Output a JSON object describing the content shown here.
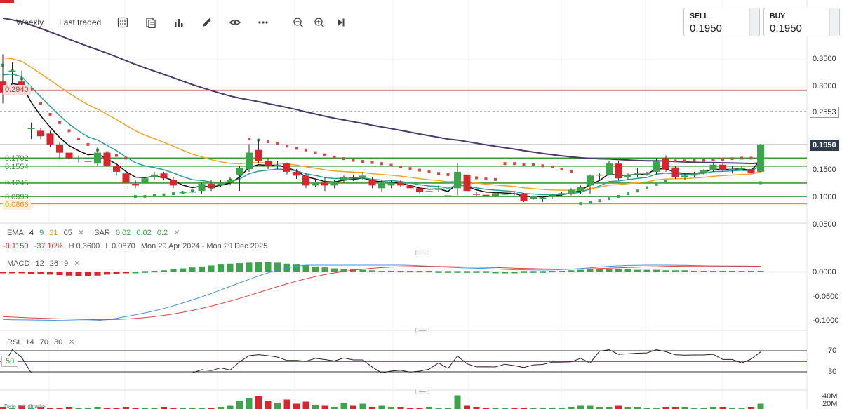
{
  "toolbar": {
    "interval": "Weekly",
    "price_type": "Last traded",
    "icons": [
      "grid-icon",
      "compare-icon",
      "bar-chart-icon",
      "pencil-icon",
      "eye-icon",
      "more-icon",
      "zoom-out-icon",
      "zoom-in-icon",
      "skip-forward-icon"
    ]
  },
  "sell": {
    "label": "SELL",
    "value": "0.1950"
  },
  "buy": {
    "label": "BUY",
    "value": "0.1950"
  },
  "indicators": {
    "ema": {
      "name": "EMA",
      "p1": "4",
      "p2": "9",
      "p3": "21",
      "p4": "65",
      "colors": [
        "#111111",
        "#2a9d9d",
        "#f0a52a",
        "#4a3a6a"
      ]
    },
    "sar": {
      "name": "SAR",
      "p1": "0.02",
      "p2": "0.02",
      "p3": "0.2",
      "colors": [
        "#e04545",
        "#3aa54a"
      ]
    },
    "macd": {
      "name": "MACD",
      "p1": "12",
      "p2": "26",
      "p3": "9"
    },
    "rsi": {
      "name": "RSI",
      "p1": "14",
      "p2": "70",
      "p3": "30"
    }
  },
  "summary": {
    "change": "-0.1150",
    "change_pct": "-37.10%",
    "high": "H 0.3600",
    "low": "L 0.0870",
    "range": "Mon 29 Apr 2024 - Mon 29 Dec 2025"
  },
  "price_axis": {
    "labels": [
      "0.3500",
      "0.3000",
      "0.2553",
      "0.2000",
      "0.1500",
      "0.1000",
      "0.0500"
    ],
    "current": "0.1950",
    "left_tags": [
      {
        "text": "0.2940",
        "color": "#c0392b"
      },
      {
        "text": "0.1702",
        "color": "#3a9a3a"
      },
      {
        "text": "0.1554",
        "color": "#3a9a3a"
      },
      {
        "text": "0.1245",
        "color": "#3a9a3a"
      },
      {
        "text": "0.0999",
        "color": "#3a9a3a"
      },
      {
        "text": "0.0866",
        "color": "#e59a1c"
      }
    ]
  },
  "macd_axis": {
    "labels": [
      "0.0000",
      "-0.0500",
      "-0.1000"
    ]
  },
  "rsi_axis": {
    "labels": [
      "70",
      "30"
    ],
    "mid": "50"
  },
  "volume_axis": {
    "labels": [
      "40M",
      "20M"
    ]
  },
  "disclaimer": "Data is indicative",
  "colors": {
    "up": "#3aa54a",
    "down": "#d9262e",
    "macd_line": "#4a90d9",
    "macd_signal": "#d94545",
    "level_red": "#c0392b",
    "level_green": "#3a9a3a",
    "level_orange": "#e59a1c"
  },
  "chart_data": {
    "type": "candlestick",
    "interval": "weekly",
    "ohlc": [
      [
        0.31,
        0.36,
        0.27,
        0.29
      ],
      [
        0.33,
        0.345,
        0.305,
        0.33
      ],
      [
        0.31,
        0.33,
        0.285,
        0.3
      ],
      [
        0.225,
        0.235,
        0.205,
        0.225
      ],
      [
        0.22,
        0.225,
        0.205,
        0.21
      ],
      [
        0.215,
        0.22,
        0.19,
        0.195
      ],
      [
        0.195,
        0.2,
        0.17,
        0.18
      ],
      [
        0.18,
        0.182,
        0.165,
        0.17
      ],
      [
        0.17,
        0.175,
        0.162,
        0.17
      ],
      [
        0.165,
        0.168,
        0.16,
        0.165
      ],
      [
        0.16,
        0.19,
        0.155,
        0.18
      ],
      [
        0.18,
        0.188,
        0.15,
        0.155
      ],
      [
        0.155,
        0.16,
        0.138,
        0.145
      ],
      [
        0.142,
        0.145,
        0.118,
        0.125
      ],
      [
        0.123,
        0.13,
        0.115,
        0.12
      ],
      [
        0.125,
        0.135,
        0.12,
        0.133
      ],
      [
        0.135,
        0.145,
        0.13,
        0.14
      ],
      [
        0.142,
        0.145,
        0.13,
        0.133
      ],
      [
        0.13,
        0.135,
        0.115,
        0.12
      ],
      [
        0.108,
        0.11,
        0.106,
        0.108
      ],
      [
        0.108,
        0.11,
        0.107,
        0.109
      ],
      [
        0.11,
        0.125,
        0.105,
        0.123
      ],
      [
        0.123,
        0.13,
        0.11,
        0.115
      ],
      [
        0.12,
        0.13,
        0.118,
        0.125
      ],
      [
        0.125,
        0.135,
        0.12,
        0.13
      ],
      [
        0.14,
        0.155,
        0.11,
        0.152
      ],
      [
        0.15,
        0.195,
        0.145,
        0.18
      ],
      [
        0.185,
        0.205,
        0.16,
        0.165
      ],
      [
        0.165,
        0.17,
        0.15,
        0.155
      ],
      [
        0.155,
        0.165,
        0.15,
        0.158
      ],
      [
        0.16,
        0.162,
        0.14,
        0.145
      ],
      [
        0.145,
        0.15,
        0.132,
        0.138
      ],
      [
        0.138,
        0.142,
        0.115,
        0.12
      ],
      [
        0.12,
        0.13,
        0.118,
        0.126
      ],
      [
        0.125,
        0.135,
        0.11,
        0.12
      ],
      [
        0.12,
        0.13,
        0.115,
        0.125
      ],
      [
        0.13,
        0.138,
        0.125,
        0.135
      ],
      [
        0.135,
        0.14,
        0.128,
        0.133
      ],
      [
        0.135,
        0.145,
        0.13,
        0.138
      ],
      [
        0.13,
        0.135,
        0.115,
        0.12
      ],
      [
        0.115,
        0.13,
        0.108,
        0.125
      ],
      [
        0.12,
        0.13,
        0.115,
        0.125
      ],
      [
        0.125,
        0.13,
        0.118,
        0.12
      ],
      [
        0.12,
        0.125,
        0.11,
        0.115
      ],
      [
        0.115,
        0.118,
        0.106,
        0.108
      ],
      [
        0.108,
        0.115,
        0.105,
        0.11
      ],
      [
        0.112,
        0.12,
        0.108,
        0.115
      ],
      [
        0.1,
        0.105,
        0.098,
        0.102
      ],
      [
        0.115,
        0.16,
        0.102,
        0.145
      ],
      [
        0.14,
        0.142,
        0.105,
        0.11
      ],
      [
        0.105,
        0.108,
        0.1,
        0.103
      ],
      [
        0.103,
        0.105,
        0.101,
        0.102
      ],
      [
        0.1,
        0.108,
        0.099,
        0.106
      ],
      [
        0.105,
        0.107,
        0.103,
        0.105
      ],
      [
        0.106,
        0.108,
        0.102,
        0.104
      ],
      [
        0.104,
        0.106,
        0.09,
        0.092
      ],
      [
        0.096,
        0.102,
        0.094,
        0.1
      ],
      [
        0.095,
        0.101,
        0.09,
        0.098
      ],
      [
        0.099,
        0.105,
        0.095,
        0.103
      ],
      [
        0.103,
        0.108,
        0.1,
        0.106
      ],
      [
        0.105,
        0.115,
        0.102,
        0.112
      ],
      [
        0.11,
        0.12,
        0.105,
        0.117
      ],
      [
        0.12,
        0.14,
        0.105,
        0.138
      ],
      [
        0.138,
        0.142,
        0.13,
        0.14
      ],
      [
        0.14,
        0.165,
        0.138,
        0.16
      ],
      [
        0.16,
        0.165,
        0.13,
        0.133
      ],
      [
        0.135,
        0.142,
        0.13,
        0.14
      ],
      [
        0.14,
        0.152,
        0.135,
        0.142
      ],
      [
        0.14,
        0.145,
        0.138,
        0.142
      ],
      [
        0.145,
        0.17,
        0.14,
        0.165
      ],
      [
        0.17,
        0.175,
        0.145,
        0.15
      ],
      [
        0.153,
        0.155,
        0.132,
        0.135
      ],
      [
        0.135,
        0.142,
        0.13,
        0.138
      ],
      [
        0.138,
        0.145,
        0.135,
        0.142
      ],
      [
        0.142,
        0.15,
        0.14,
        0.148
      ],
      [
        0.148,
        0.16,
        0.145,
        0.158
      ],
      [
        0.158,
        0.162,
        0.145,
        0.148
      ],
      [
        0.148,
        0.155,
        0.142,
        0.15
      ],
      [
        0.15,
        0.155,
        0.148,
        0.152
      ],
      [
        0.15,
        0.152,
        0.135,
        0.142
      ],
      [
        0.145,
        0.196,
        0.144,
        0.195
      ]
    ],
    "sar": [
      0.34,
      0.33,
      0.315,
      0.295,
      0.27,
      0.25,
      0.235,
      0.22,
      0.205,
      0.195,
      0.185,
      0.18,
      0.175,
      0.17,
      0.1,
      0.1,
      0.102,
      0.103,
      0.105,
      0.107,
      0.11,
      0.113,
      0.116,
      0.122,
      0.13,
      0.14,
      0.205,
      0.203,
      0.2,
      0.197,
      0.192,
      0.188,
      0.185,
      0.18,
      0.176,
      0.172,
      0.169,
      0.166,
      0.164,
      0.162,
      0.16,
      0.157,
      0.154,
      0.151,
      0.148,
      0.145,
      0.142,
      0.14,
      0.138,
      0.136,
      0.134,
      0.132,
      0.131,
      0.16,
      0.16,
      0.159,
      0.158,
      0.156,
      0.154,
      0.15,
      0.145,
      0.087,
      0.089,
      0.092,
      0.096,
      0.1,
      0.105,
      0.11,
      0.116,
      0.122,
      0.128,
      0.165,
      0.165,
      0.166,
      0.166,
      0.167,
      0.168,
      0.169,
      0.17,
      0.17,
      0.125
    ],
    "sar_from": 0,
    "macd": {
      "histogram": [
        -0.002,
        -0.002,
        -0.002,
        -0.003,
        -0.004,
        -0.005,
        -0.006,
        -0.007,
        -0.008,
        -0.008,
        -0.007,
        -0.005,
        -0.003,
        -0.001,
        0.0,
        0.001,
        0.002,
        0.004,
        0.006,
        0.008,
        0.01,
        0.012,
        0.014,
        0.016,
        0.018,
        0.019,
        0.02,
        0.021,
        0.021,
        0.02,
        0.018,
        0.016,
        0.014,
        0.012,
        0.01,
        0.008,
        0.007,
        0.006,
        0.005,
        0.004,
        0.003,
        0.003,
        0.002,
        0.002,
        0.002,
        0.002,
        0.001,
        0.001,
        0.001,
        0.001,
        0.001,
        0.001,
        0.0,
        0.0,
        0.0,
        0.001,
        0.001,
        0.001,
        0.002,
        0.003,
        0.004,
        0.005,
        0.006,
        0.007,
        0.007,
        0.006,
        0.006,
        0.005,
        0.005,
        0.005,
        0.004,
        0.004,
        0.004,
        0.003,
        0.003,
        0.003,
        0.003,
        0.003,
        0.003,
        0.003,
        0.003
      ],
      "macd_start": -0.098,
      "signal_start": -0.092
    },
    "volume": [
      2,
      1,
      3,
      1,
      2,
      1,
      1,
      2,
      1,
      1,
      2,
      1,
      1,
      2,
      1,
      1,
      1,
      2,
      1,
      1,
      1,
      1,
      1,
      2,
      3,
      8,
      10,
      12,
      8,
      6,
      9,
      5,
      7,
      4,
      3,
      2,
      6,
      3,
      5,
      2,
      3,
      2,
      2,
      1,
      1,
      2,
      1,
      1,
      13,
      3,
      2,
      1,
      1,
      1,
      1,
      1,
      1,
      1,
      1,
      1,
      2,
      3,
      3,
      2,
      2,
      3,
      2,
      2,
      1,
      1,
      2,
      2,
      2,
      1,
      1,
      2,
      2,
      1,
      1,
      2,
      5
    ],
    "volume_unit": "M",
    "price_ylim": [
      0.03,
      0.38
    ],
    "levels": [
      0.294,
      0.2553,
      0.1702,
      0.1554,
      0.1245,
      0.0999,
      0.0866
    ]
  }
}
